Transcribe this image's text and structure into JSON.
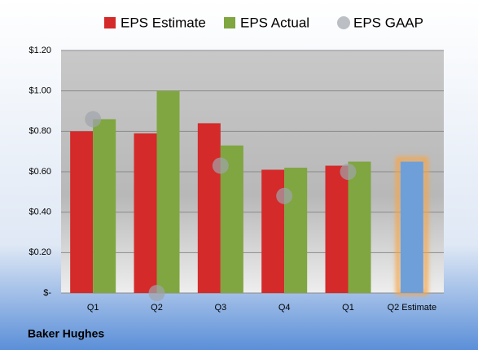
{
  "chart_data": {
    "type": "bar",
    "categories": [
      "Q1",
      "Q2",
      "Q3",
      "Q4",
      "Q1",
      "Q2 Estimate"
    ],
    "series": [
      {
        "name": "EPS Estimate",
        "type": "bar",
        "color": "#d42a2a",
        "forecast_color": "#6f9fd8",
        "forecast_glow": "#f5a54a",
        "values": [
          0.8,
          0.79,
          0.84,
          0.61,
          0.63,
          0.65
        ]
      },
      {
        "name": "EPS Actual",
        "type": "bar",
        "color": "#7fa640",
        "values": [
          0.86,
          1.0,
          0.73,
          0.62,
          0.65,
          null
        ]
      },
      {
        "name": "EPS GAAP",
        "type": "scatter",
        "color": "#a0a4ab",
        "values": [
          0.86,
          0.0,
          0.63,
          0.48,
          0.6,
          null
        ]
      }
    ],
    "ylim": [
      0,
      1.2
    ],
    "yticks": [
      {
        "value": 0,
        "label": "$-"
      },
      {
        "value": 0.2,
        "label": "$0.20"
      },
      {
        "value": 0.4,
        "label": "$0.40"
      },
      {
        "value": 0.6,
        "label": "$0.60"
      },
      {
        "value": 0.8,
        "label": "$0.80"
      },
      {
        "value": 1.0,
        "label": "$1.00"
      },
      {
        "value": 1.2,
        "label": "$1.20"
      }
    ],
    "grid": true,
    "footer": "Baker Hughes"
  }
}
